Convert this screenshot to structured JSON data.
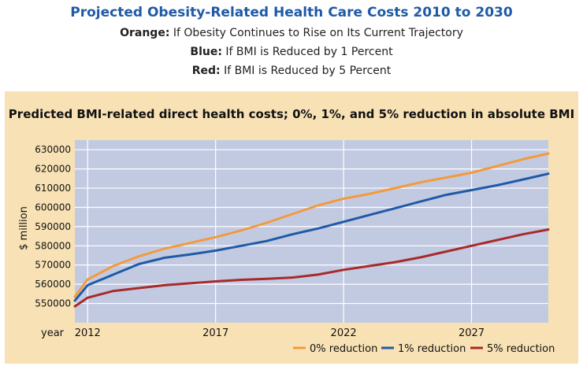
{
  "header": {
    "title": "Projected Obesity-Related Health Care Costs 2010 to 2030",
    "lines": [
      {
        "key": "Orange:",
        "text": "If Obesity Continues to Rise on Its Current Trajectory"
      },
      {
        "key": "Blue:",
        "text": "If BMI is Reduced by 1 Percent"
      },
      {
        "key": "Red:",
        "text": "If BMI is Reduced by 5 Percent"
      }
    ]
  },
  "chart_data": {
    "type": "line",
    "title": "Predicted BMI-related direct health costs; 0%, 1%, and 5% reduction in absolute BMI",
    "ylabel": "$ million",
    "xlabel": "year",
    "xlim": [
      2011.5,
      2030.0
    ],
    "ylim": [
      540000,
      635000
    ],
    "yticks": [
      550000,
      560000,
      570000,
      580000,
      590000,
      600000,
      610000,
      620000,
      630000
    ],
    "ytick_labels": [
      "550000",
      "560000",
      "570000",
      "580000",
      "590000",
      "600000",
      "610000",
      "620000",
      "630000"
    ],
    "xticks": [
      2012,
      2017,
      2022,
      2027
    ],
    "xtick_labels": [
      "2012",
      "2017",
      "2022",
      "2027"
    ],
    "grid": true,
    "legend_position": "bottom-right",
    "series": [
      {
        "name": "0% reduction",
        "color": "#f39a3c",
        "x": [
          2011.5,
          2012,
          2013,
          2014,
          2015,
          2016,
          2017,
          2018,
          2019,
          2020,
          2021,
          2022,
          2023,
          2024,
          2025,
          2026,
          2027,
          2028,
          2029,
          2030
        ],
        "y": [
          553500,
          562500,
          569500,
          574500,
          578500,
          581500,
          584500,
          588000,
          592000,
          596500,
          601000,
          604500,
          607000,
          610000,
          613000,
          615500,
          618000,
          621500,
          625000,
          628000
        ]
      },
      {
        "name": "1% reduction",
        "color": "#1f5aa6",
        "x": [
          2011.5,
          2012,
          2013,
          2014,
          2015,
          2016,
          2017,
          2018,
          2019,
          2020,
          2021,
          2022,
          2023,
          2024,
          2025,
          2026,
          2027,
          2028,
          2029,
          2030
        ],
        "y": [
          551500,
          559500,
          565000,
          570500,
          573800,
          575500,
          577500,
          580000,
          582500,
          586000,
          589000,
          592500,
          596000,
          599500,
          603000,
          606500,
          609000,
          611500,
          614500,
          617500
        ]
      },
      {
        "name": "5% reduction",
        "color": "#a82a2a",
        "x": [
          2011.5,
          2012,
          2013,
          2014,
          2015,
          2016,
          2017,
          2018,
          2019,
          2020,
          2021,
          2022,
          2023,
          2024,
          2025,
          2026,
          2027,
          2028,
          2029,
          2030
        ],
        "y": [
          548500,
          553000,
          556500,
          558000,
          559500,
          560500,
          561500,
          562300,
          562800,
          563500,
          565000,
          567500,
          569500,
          571500,
          574000,
          577000,
          580000,
          583000,
          586000,
          588500
        ]
      }
    ]
  }
}
